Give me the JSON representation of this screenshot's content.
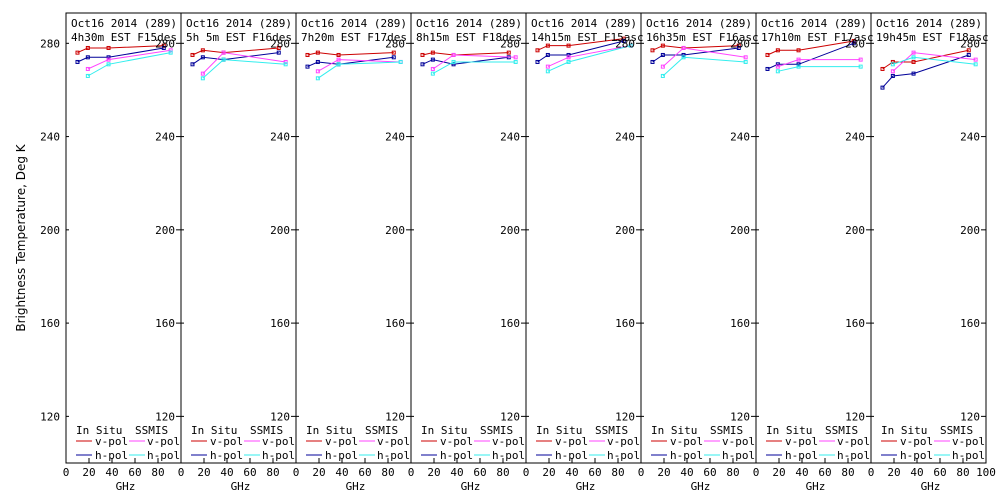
{
  "chart_data": {
    "type": "line",
    "y_axis_label": "Brightness Temperature, Deg K",
    "x_axis_label": "GHz",
    "ylim": [
      100,
      293
    ],
    "xlim": [
      0,
      100
    ],
    "y_ticks": [
      120,
      160,
      200,
      240,
      280
    ],
    "x_ticks": [
      0,
      20,
      40,
      60,
      80,
      100
    ],
    "x_tick_labels": [
      "0",
      "20",
      "40",
      "60",
      "80",
      "100"
    ],
    "legend": {
      "in_situ": "In Situ",
      "ssmis": "SSMIS",
      "v_pol": "v-pol",
      "h_pol": "h-pol"
    },
    "series_colors": {
      "insitu_v": "#cc0000",
      "insitu_h": "#000099",
      "ssmis_v": "#ff44ff",
      "ssmis_h": "#33eeee"
    },
    "panels": [
      {
        "title1": "Oct16 2014 (289)",
        "title2": "4h30m EST F15des",
        "insitu_v": {
          "x": [
            10,
            19,
            37,
            85
          ],
          "y": [
            276,
            278,
            278,
            279
          ]
        },
        "insitu_h": {
          "x": [
            10,
            19,
            37,
            85
          ],
          "y": [
            272,
            274,
            274,
            278
          ]
        },
        "ssmis_v": {
          "x": [
            19,
            37,
            91
          ],
          "y": [
            269,
            273,
            277
          ]
        },
        "ssmis_h": {
          "x": [
            19,
            37,
            91
          ],
          "y": [
            266,
            271,
            276
          ]
        }
      },
      {
        "title1": "Oct16 2014 (289)",
        "title2": "5h 5m  EST F16des",
        "insitu_v": {
          "x": [
            10,
            19,
            37,
            85
          ],
          "y": [
            275,
            277,
            276,
            278
          ]
        },
        "insitu_h": {
          "x": [
            10,
            19,
            37,
            85
          ],
          "y": [
            271,
            274,
            273,
            276
          ]
        },
        "ssmis_v": {
          "x": [
            19,
            37,
            91
          ],
          "y": [
            267,
            276,
            272
          ]
        },
        "ssmis_h": {
          "x": [
            19,
            37,
            91
          ],
          "y": [
            265,
            273,
            271
          ]
        }
      },
      {
        "title1": "Oct16 2014 (289)",
        "title2": "7h20m EST F17des",
        "insitu_v": {
          "x": [
            10,
            19,
            37,
            85
          ],
          "y": [
            275,
            276,
            275,
            276
          ]
        },
        "insitu_h": {
          "x": [
            10,
            19,
            37,
            85
          ],
          "y": [
            270,
            272,
            271,
            274
          ]
        },
        "ssmis_v": {
          "x": [
            19,
            37,
            91
          ],
          "y": [
            268,
            273,
            272
          ]
        },
        "ssmis_h": {
          "x": [
            19,
            37,
            91
          ],
          "y": [
            265,
            271,
            272
          ]
        }
      },
      {
        "title1": "Oct16 2014 (289)",
        "title2": "8h15m EST F18des",
        "insitu_v": {
          "x": [
            10,
            19,
            37,
            85
          ],
          "y": [
            275,
            276,
            275,
            276
          ]
        },
        "insitu_h": {
          "x": [
            10,
            19,
            37,
            85
          ],
          "y": [
            271,
            273,
            271,
            274
          ]
        },
        "ssmis_v": {
          "x": [
            19,
            37,
            91
          ],
          "y": [
            269,
            275,
            274
          ]
        },
        "ssmis_h": {
          "x": [
            19,
            37,
            91
          ],
          "y": [
            267,
            272,
            272
          ]
        }
      },
      {
        "title1": "Oct16 2014 (289)",
        "title2": "14h15m EST F15asc",
        "insitu_v": {
          "x": [
            10,
            19,
            37,
            85
          ],
          "y": [
            277,
            279,
            279,
            282
          ]
        },
        "insitu_h": {
          "x": [
            10,
            19,
            37,
            85
          ],
          "y": [
            272,
            275,
            275,
            281
          ]
        },
        "ssmis_v": {
          "x": [
            19,
            37,
            91
          ],
          "y": [
            270,
            274,
            279
          ]
        },
        "ssmis_h": {
          "x": [
            19,
            37,
            91
          ],
          "y": [
            268,
            272,
            279
          ]
        }
      },
      {
        "title1": "Oct16 2014 (289)",
        "title2": "16h35m EST F16asc",
        "insitu_v": {
          "x": [
            10,
            19,
            37,
            85
          ],
          "y": [
            277,
            279,
            278,
            279
          ]
        },
        "insitu_h": {
          "x": [
            10,
            19,
            37,
            85
          ],
          "y": [
            272,
            275,
            275,
            278
          ]
        },
        "ssmis_v": {
          "x": [
            19,
            37,
            91
          ],
          "y": [
            270,
            278,
            274
          ]
        },
        "ssmis_h": {
          "x": [
            19,
            37,
            91
          ],
          "y": [
            266,
            274,
            272
          ]
        }
      },
      {
        "title1": "Oct16 2014 (289)",
        "title2": "17h10m EST F17asc",
        "insitu_v": {
          "x": [
            10,
            19,
            37,
            85
          ],
          "y": [
            275,
            277,
            277,
            281
          ]
        },
        "insitu_h": {
          "x": [
            10,
            19,
            37,
            85
          ],
          "y": [
            269,
            271,
            271,
            280
          ]
        },
        "ssmis_v": {
          "x": [
            19,
            37,
            91
          ],
          "y": [
            270,
            273,
            273
          ]
        },
        "ssmis_h": {
          "x": [
            19,
            37,
            91
          ],
          "y": [
            268,
            270,
            270
          ]
        }
      },
      {
        "title1": "Oct16 2014 (289)",
        "title2": "19h45m EST F18asc",
        "insitu_v": {
          "x": [
            10,
            19,
            37,
            85
          ],
          "y": [
            269,
            272,
            272,
            277
          ]
        },
        "insitu_h": {
          "x": [
            10,
            19,
            37,
            85
          ],
          "y": [
            261,
            266,
            267,
            275
          ]
        },
        "ssmis_v": {
          "x": [
            19,
            37,
            91
          ],
          "y": [
            268,
            276,
            273
          ]
        },
        "ssmis_h": {
          "x": [
            19,
            37,
            91
          ],
          "y": [
            271,
            274,
            271
          ]
        }
      }
    ]
  }
}
